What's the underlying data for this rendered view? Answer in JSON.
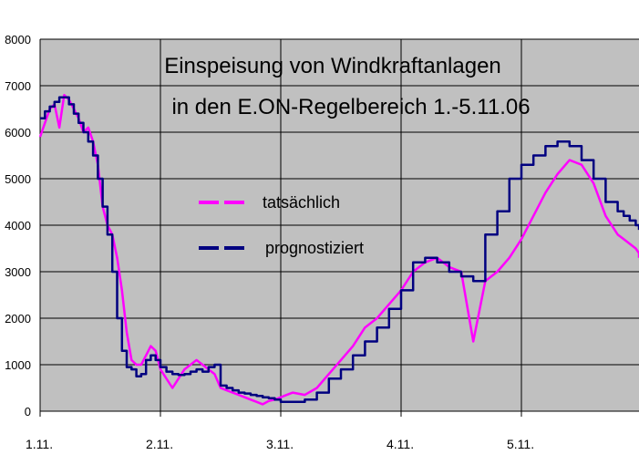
{
  "chart_data": {
    "type": "line",
    "title": "Einspeisung von Windkraftanlagen",
    "subtitle": "in den E.ON-Regelbereich 1.-5.11.06",
    "xlabel": "",
    "ylabel": "",
    "x_ticks": [
      "1.11.",
      "2.11.",
      "3.11.",
      "4.11.",
      "5.11."
    ],
    "y_ticks": [
      "0",
      "1000",
      "2000",
      "3000",
      "4000",
      "5000",
      "6000",
      "7000",
      "8000"
    ],
    "xlim": [
      0,
      5.05
    ],
    "ylim": [
      0,
      8000
    ],
    "grid": true,
    "legend_position": "center-left",
    "colors": {
      "plot_background": "#c0c0c0",
      "grid": "#000000",
      "actual": "#ff00ff",
      "forecast": "#000080"
    },
    "series": [
      {
        "name": "tatsächlich",
        "style": "line",
        "x": [
          0,
          0.04,
          0.08,
          0.12,
          0.16,
          0.2,
          0.24,
          0.28,
          0.32,
          0.36,
          0.4,
          0.44,
          0.48,
          0.52,
          0.56,
          0.6,
          0.64,
          0.68,
          0.72,
          0.76,
          0.8,
          0.84,
          0.88,
          0.92,
          0.96,
          1.0,
          1.05,
          1.1,
          1.15,
          1.2,
          1.25,
          1.3,
          1.35,
          1.4,
          1.45,
          1.5,
          1.55,
          1.6,
          1.65,
          1.7,
          1.75,
          1.8,
          1.85,
          1.9,
          1.95,
          2.0,
          2.05,
          2.1,
          2.2,
          2.3,
          2.4,
          2.5,
          2.6,
          2.7,
          2.8,
          2.9,
          3.0,
          3.1,
          3.2,
          3.3,
          3.4,
          3.5,
          3.6,
          3.7,
          3.8,
          3.9,
          4.0,
          4.1,
          4.2,
          4.3,
          4.4,
          4.5,
          4.6,
          4.7,
          4.8,
          4.85,
          4.9,
          4.95,
          5.0,
          5.05
        ],
        "y": [
          5900,
          6200,
          6500,
          6600,
          6100,
          6800,
          6700,
          6500,
          6300,
          6000,
          6100,
          5800,
          5300,
          4400,
          4000,
          3800,
          3300,
          2600,
          1700,
          1100,
          1000,
          1000,
          1200,
          1400,
          1300,
          900,
          700,
          500,
          700,
          900,
          1000,
          1100,
          1000,
          900,
          800,
          500,
          450,
          400,
          350,
          300,
          250,
          200,
          150,
          220,
          250,
          300,
          350,
          400,
          350,
          500,
          800,
          1100,
          1400,
          1800,
          2000,
          2300,
          2600,
          3000,
          3200,
          3300,
          3100,
          3000,
          1500,
          2800,
          3000,
          3300,
          3700,
          4200,
          4700,
          5100,
          5400,
          5300,
          4900,
          4200,
          3800,
          3700,
          3600,
          3500,
          3400,
          3300
        ]
      },
      {
        "name": "prognostiziert",
        "style": "step",
        "x": [
          0,
          0.04,
          0.08,
          0.12,
          0.16,
          0.2,
          0.24,
          0.28,
          0.32,
          0.36,
          0.4,
          0.44,
          0.48,
          0.52,
          0.56,
          0.6,
          0.64,
          0.68,
          0.72,
          0.76,
          0.8,
          0.84,
          0.88,
          0.92,
          0.96,
          1.0,
          1.05,
          1.1,
          1.15,
          1.2,
          1.25,
          1.3,
          1.35,
          1.4,
          1.45,
          1.5,
          1.55,
          1.6,
          1.65,
          1.7,
          1.75,
          1.8,
          1.85,
          1.9,
          1.95,
          2.0,
          2.05,
          2.1,
          2.2,
          2.3,
          2.4,
          2.5,
          2.6,
          2.7,
          2.8,
          2.9,
          3.0,
          3.1,
          3.2,
          3.3,
          3.4,
          3.5,
          3.6,
          3.7,
          3.8,
          3.9,
          4.0,
          4.1,
          4.2,
          4.3,
          4.4,
          4.5,
          4.6,
          4.7,
          4.8,
          4.85,
          4.9,
          4.95,
          5.0,
          5.05
        ],
        "y": [
          6300,
          6450,
          6550,
          6650,
          6750,
          6750,
          6600,
          6400,
          6200,
          6000,
          5800,
          5500,
          5000,
          4400,
          3800,
          3000,
          2000,
          1300,
          950,
          900,
          750,
          800,
          1100,
          1200,
          1100,
          950,
          850,
          800,
          780,
          800,
          850,
          900,
          850,
          950,
          1000,
          550,
          500,
          450,
          400,
          380,
          350,
          330,
          300,
          280,
          250,
          200,
          200,
          200,
          250,
          400,
          700,
          900,
          1200,
          1500,
          1800,
          2200,
          2600,
          3200,
          3300,
          3200,
          3000,
          2900,
          2800,
          3800,
          4300,
          5000,
          5300,
          5500,
          5700,
          5800,
          5700,
          5400,
          5000,
          4500,
          4300,
          4200,
          4100,
          4000,
          3900,
          3900
        ]
      }
    ]
  }
}
